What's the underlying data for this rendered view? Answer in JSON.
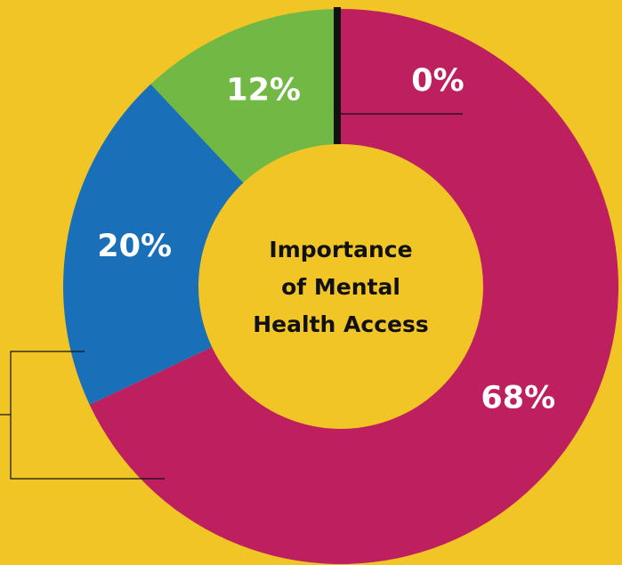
{
  "chart_data": {
    "type": "donut",
    "title": [
      "Importance",
      "of Mental",
      "Health Access"
    ],
    "categories": [
      null,
      null,
      null,
      null
    ],
    "values": [
      68,
      20,
      12,
      0
    ],
    "value_labels": [
      "68%",
      "20%",
      "12%",
      "0%"
    ],
    "colors": [
      "#bd1f5f",
      "#1a70b8",
      "#72b844",
      "#111111"
    ],
    "background": "#f2c526"
  }
}
